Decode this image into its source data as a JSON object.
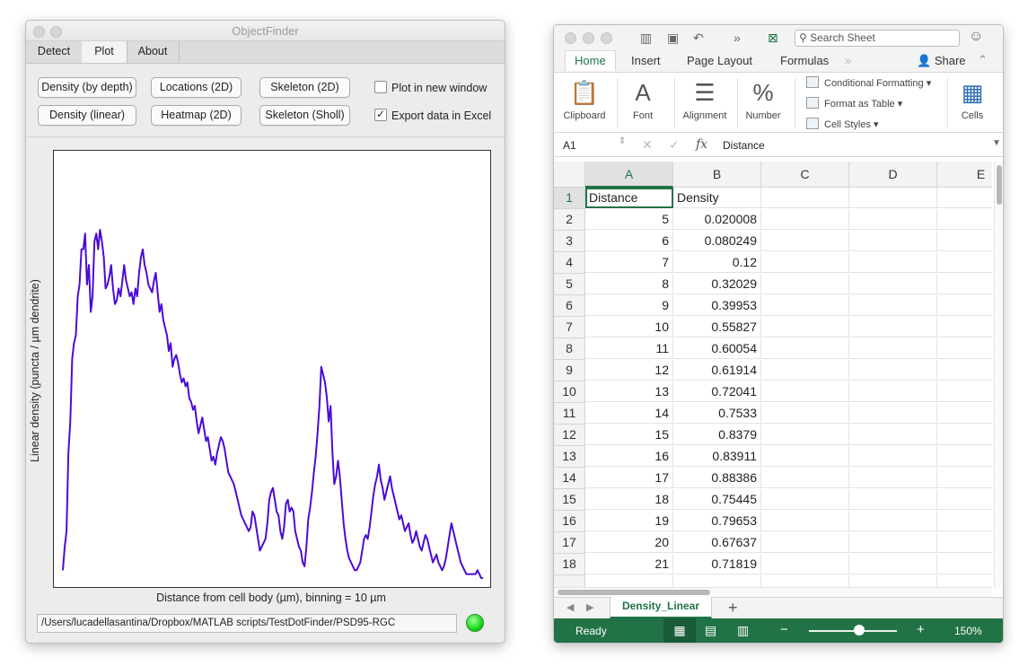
{
  "objectfinder": {
    "title": "ObjectFinder",
    "tabs": [
      {
        "label": "Detect"
      },
      {
        "label": "Plot"
      },
      {
        "label": "About"
      }
    ],
    "buttons": {
      "density_depth": "Density (by depth)",
      "locations_2d": "Locations (2D)",
      "skeleton_2d": "Skeleton (2D)",
      "density_linear": "Density (linear)",
      "heatmap_2d": "Heatmap (2D)",
      "skeleton_sholl": "Skeleton (Sholl)"
    },
    "checkboxes": {
      "plot_new_window": {
        "label": "Plot in new window",
        "checked": false
      },
      "export_excel": {
        "label": "Export data in Excel",
        "checked": true
      }
    },
    "path": "/Users/lucadellasantina/Dropbox/MATLAB scripts/TestDotFinder/PSD95-RGC",
    "status_color": "#17d617"
  },
  "chart_data": {
    "type": "line",
    "title": "",
    "xlabel": "Distance from cell body (µm), binning = 10 µm",
    "ylabel": "Linear density (puncta / µm dendrite)",
    "grid": false,
    "line_color": "#4b0bd6",
    "series": [
      {
        "values": [
          0.02,
          0.08,
          0.12,
          0.32,
          0.4,
          0.56,
          0.6,
          0.62,
          0.72,
          0.75,
          0.84,
          0.84,
          0.88,
          0.75,
          0.8,
          0.68,
          0.72,
          0.86,
          0.88,
          0.84,
          0.89,
          0.86,
          0.82,
          0.74,
          0.75,
          0.77,
          0.8,
          0.74,
          0.7,
          0.71,
          0.74,
          0.72,
          0.76,
          0.8,
          0.76,
          0.74,
          0.72,
          0.73,
          0.7,
          0.74,
          0.72,
          0.78,
          0.82,
          0.84,
          0.8,
          0.78,
          0.75,
          0.74,
          0.73,
          0.76,
          0.78,
          0.73,
          0.68,
          0.7,
          0.66,
          0.64,
          0.62,
          0.58,
          0.6,
          0.54,
          0.56,
          0.57,
          0.55,
          0.52,
          0.5,
          0.51,
          0.49,
          0.5,
          0.46,
          0.45,
          0.43,
          0.44,
          0.4,
          0.37,
          0.39,
          0.41,
          0.38,
          0.35,
          0.36,
          0.33,
          0.3,
          0.31,
          0.29,
          0.32,
          0.34,
          0.36,
          0.35,
          0.33,
          0.3,
          0.27,
          0.26,
          0.25,
          0.24,
          0.22,
          0.2,
          0.18,
          0.16,
          0.15,
          0.14,
          0.13,
          0.12,
          0.13,
          0.17,
          0.16,
          0.13,
          0.1,
          0.07,
          0.08,
          0.09,
          0.1,
          0.14,
          0.2,
          0.22,
          0.23,
          0.2,
          0.17,
          0.16,
          0.12,
          0.1,
          0.13,
          0.19,
          0.2,
          0.17,
          0.18,
          0.17,
          0.12,
          0.1,
          0.08,
          0.07,
          0.04,
          0.03,
          0.08,
          0.15,
          0.18,
          0.22,
          0.27,
          0.31,
          0.37,
          0.44,
          0.54,
          0.52,
          0.5,
          0.46,
          0.4,
          0.44,
          0.32,
          0.24,
          0.26,
          0.3,
          0.26,
          0.2,
          0.14,
          0.1,
          0.07,
          0.05,
          0.04,
          0.03,
          0.02,
          0.02,
          0.03,
          0.04,
          0.07,
          0.1,
          0.11,
          0.1,
          0.13,
          0.17,
          0.21,
          0.24,
          0.26,
          0.29,
          0.25,
          0.23,
          0.2,
          0.22,
          0.24,
          0.26,
          0.23,
          0.21,
          0.19,
          0.17,
          0.15,
          0.16,
          0.14,
          0.12,
          0.13,
          0.14,
          0.11,
          0.09,
          0.1,
          0.12,
          0.1,
          0.08,
          0.07,
          0.09,
          0.11,
          0.1,
          0.08,
          0.06,
          0.04,
          0.05,
          0.06,
          0.04,
          0.03,
          0.02,
          0.03,
          0.05,
          0.08,
          0.11,
          0.14,
          0.12,
          0.1,
          0.08,
          0.06,
          0.04,
          0.03,
          0.02,
          0.01,
          0.01,
          0.01,
          0.01,
          0.01,
          0.01,
          0.02,
          0.01,
          0.0,
          0.0
        ]
      }
    ]
  },
  "excel": {
    "toolbar": {
      "search_placeholder": "Search Sheet",
      "share": "Share"
    },
    "ribbon_tabs": [
      "Home",
      "Insert",
      "Page Layout",
      "Formulas"
    ],
    "ribbon_groups": {
      "clipboard": "Clipboard",
      "font": "Font",
      "alignment": "Alignment",
      "number": "Number",
      "cells": "Cells"
    },
    "styles": {
      "conditional": "Conditional Formatting",
      "table": "Format as Table",
      "cell_styles": "Cell Styles"
    },
    "name_box": "A1",
    "formula": "Distance",
    "columns": [
      "A",
      "B",
      "C",
      "D",
      "E"
    ],
    "rows": [
      {
        "n": "1",
        "a": "Distance",
        "b": "Density"
      },
      {
        "n": "2",
        "a": "5",
        "b": "0.020008"
      },
      {
        "n": "3",
        "a": "6",
        "b": "0.080249"
      },
      {
        "n": "4",
        "a": "7",
        "b": "0.12"
      },
      {
        "n": "5",
        "a": "8",
        "b": "0.32029"
      },
      {
        "n": "6",
        "a": "9",
        "b": "0.39953"
      },
      {
        "n": "7",
        "a": "10",
        "b": "0.55827"
      },
      {
        "n": "8",
        "a": "11",
        "b": "0.60054"
      },
      {
        "n": "9",
        "a": "12",
        "b": "0.61914"
      },
      {
        "n": "10",
        "a": "13",
        "b": "0.72041"
      },
      {
        "n": "11",
        "a": "14",
        "b": "0.7533"
      },
      {
        "n": "12",
        "a": "15",
        "b": "0.8379"
      },
      {
        "n": "13",
        "a": "16",
        "b": "0.83911"
      },
      {
        "n": "14",
        "a": "17",
        "b": "0.88386"
      },
      {
        "n": "15",
        "a": "18",
        "b": "0.75445"
      },
      {
        "n": "16",
        "a": "19",
        "b": "0.79653"
      },
      {
        "n": "17",
        "a": "20",
        "b": "0.67637"
      },
      {
        "n": "18",
        "a": "21",
        "b": "0.71819"
      }
    ],
    "sheet_tab": "Density_Linear",
    "status": "Ready",
    "zoom": "150%",
    "accent": "#217346"
  }
}
